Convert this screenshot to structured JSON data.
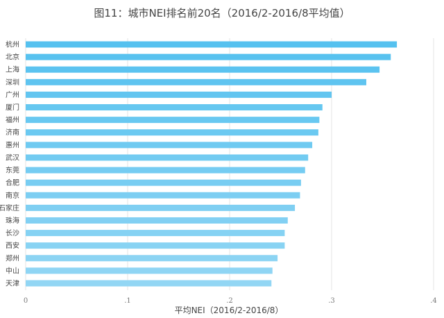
{
  "chart_data": {
    "type": "bar",
    "orientation": "horizontal",
    "title": "图11：城市NEI排名前20名（2016/2-2016/8平均值）",
    "xlabel": "平均NEI（2016/2-2016/8）",
    "ylabel": "",
    "xlim": [
      0,
      0.4
    ],
    "xticks": [
      0,
      0.1,
      0.2,
      0.3,
      0.4
    ],
    "xtick_labels": [
      "0",
      ".1",
      ".2",
      ".3",
      ".4"
    ],
    "grid": "vertical",
    "categories": [
      "杭州",
      "北京",
      "上海",
      "深圳",
      "广州",
      "厦门",
      "福州",
      "济南",
      "惠州",
      "武汉",
      "东莞",
      "合肥",
      "南京",
      "石家庄",
      "珠海",
      "长沙",
      "西安",
      "郑州",
      "中山",
      "天津"
    ],
    "values": [
      0.364,
      0.358,
      0.347,
      0.334,
      0.3,
      0.291,
      0.288,
      0.287,
      0.281,
      0.277,
      0.274,
      0.27,
      0.269,
      0.264,
      0.257,
      0.254,
      0.254,
      0.247,
      0.242,
      0.241
    ],
    "colors": {
      "bar_top": "#55c1ef",
      "bar_bottom": "#92d6f4",
      "grid": "#e3e3e3"
    }
  }
}
